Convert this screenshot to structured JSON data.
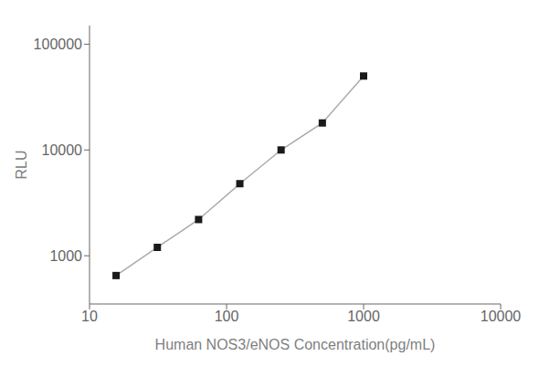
{
  "chart_data": {
    "type": "line",
    "x": [
      15.625,
      31.25,
      62.5,
      125,
      250,
      500,
      1000
    ],
    "values": [
      650,
      1200,
      2200,
      4800,
      10000,
      18000,
      50000
    ],
    "xlabel": "Human NOS3/eNOS Concentration(pg/mL)",
    "ylabel": "RLU",
    "xlim": [
      10,
      10000
    ],
    "ylim": [
      350,
      150000
    ],
    "xticks": [
      10,
      100,
      1000,
      10000
    ],
    "yticks": [
      1000,
      10000,
      100000
    ],
    "log": true,
    "grid": false,
    "color": "#aaaaaa",
    "colors": [
      "#1a1a1a",
      "#1a1a1a",
      "#1a1a1a",
      "#1a1a1a",
      "#1a1a1a",
      "#1a1a1a",
      "#1a1a1a"
    ],
    "marker": "square",
    "line_style": "solid"
  }
}
